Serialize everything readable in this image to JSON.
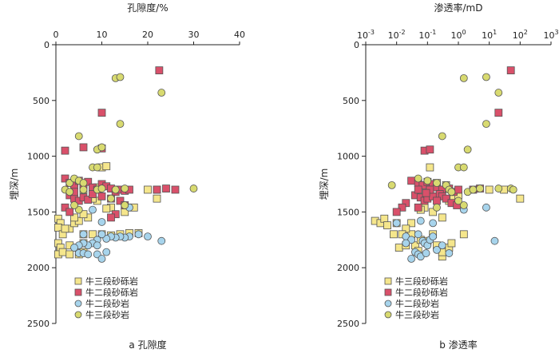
{
  "chart_data": [
    {
      "type": "scatter",
      "title": "孔隙度/%",
      "caption": "a 孔隙度",
      "xlabel": "孔隙度/%",
      "ylabel": "埋深/m",
      "xscale": "linear",
      "xlim": [
        0,
        40
      ],
      "ylim": [
        2500,
        0
      ],
      "xticks": [
        0,
        10,
        20,
        30,
        40
      ],
      "xtick_labels": [
        "0",
        "10",
        "20",
        "30",
        "40"
      ],
      "yticks": [
        0,
        500,
        1000,
        1500,
        2000,
        2500
      ],
      "ytick_labels": [
        "0",
        "500",
        "1000",
        "1500",
        "2000",
        "2500"
      ],
      "legend_position": "bottom-left",
      "series": [
        {
          "name": "牛三段砂砾岩",
          "marker": "square",
          "color": "#f5e68c",
          "points": [
            [
              0.5,
              1560
            ],
            [
              1,
              1600
            ],
            [
              0.5,
              1640
            ],
            [
              1.5,
              1700
            ],
            [
              0.5,
              1780
            ],
            [
              1,
              1820
            ],
            [
              0.5,
              1880
            ],
            [
              1.5,
              1860
            ],
            [
              3,
              1800
            ],
            [
              3,
              1650
            ],
            [
              4,
              1600
            ],
            [
              5,
              1580
            ],
            [
              6,
              1700
            ],
            [
              6,
              1780
            ],
            [
              6,
              1860
            ],
            [
              5,
              1880
            ],
            [
              8,
              1700
            ],
            [
              10,
              1700
            ],
            [
              12,
              1710
            ],
            [
              14,
              1700
            ],
            [
              16,
              1690
            ],
            [
              18,
              1690
            ],
            [
              17,
              1460
            ],
            [
              15,
              1500
            ],
            [
              12,
              1460
            ],
            [
              11,
              1470
            ],
            [
              9,
              1400
            ],
            [
              8,
              1380
            ],
            [
              7,
              1550
            ],
            [
              6,
              1520
            ],
            [
              4,
              1240
            ],
            [
              9,
              1280
            ],
            [
              10,
              1100
            ],
            [
              11,
              1090
            ],
            [
              22,
              1380
            ],
            [
              22,
              1300
            ],
            [
              20,
              1300
            ],
            [
              13,
              1300
            ],
            [
              6,
              1300
            ],
            [
              4,
              1550
            ],
            [
              2,
              1650
            ],
            [
              3,
              1880
            ]
          ]
        },
        {
          "name": "牛二段砂砾岩",
          "marker": "square",
          "color": "#d9506a",
          "points": [
            [
              22.5,
              230
            ],
            [
              10,
              610
            ],
            [
              2,
              950
            ],
            [
              6,
              920
            ],
            [
              10,
              930
            ],
            [
              2,
              1200
            ],
            [
              3,
              1240
            ],
            [
              4,
              1260
            ],
            [
              5,
              1220
            ],
            [
              6,
              1260
            ],
            [
              7,
              1230
            ],
            [
              8,
              1280
            ],
            [
              9,
              1300
            ],
            [
              10,
              1250
            ],
            [
              11,
              1270
            ],
            [
              12,
              1290
            ],
            [
              13,
              1320
            ],
            [
              14,
              1300
            ],
            [
              15,
              1310
            ],
            [
              16,
              1300
            ],
            [
              22,
              1300
            ],
            [
              24,
              1290
            ],
            [
              26,
              1300
            ],
            [
              3,
              1350
            ],
            [
              4,
              1380
            ],
            [
              5,
              1400
            ],
            [
              6,
              1370
            ],
            [
              7,
              1390
            ],
            [
              8,
              1340
            ],
            [
              10,
              1360
            ],
            [
              12,
              1380
            ],
            [
              14,
              1400
            ],
            [
              15,
              1440
            ],
            [
              2,
              1460
            ],
            [
              3,
              1500
            ],
            [
              13,
              1520
            ],
            [
              12,
              1550
            ],
            [
              4,
              1320
            ]
          ]
        },
        {
          "name": "牛二段砂岩",
          "marker": "circle",
          "color": "#a7d4ec",
          "points": [
            [
              23,
              1760
            ],
            [
              20,
              1720
            ],
            [
              18,
              1700
            ],
            [
              16,
              1720
            ],
            [
              15,
              1730
            ],
            [
              14,
              1720
            ],
            [
              13,
              1730
            ],
            [
              12,
              1720
            ],
            [
              11,
              1740
            ],
            [
              10,
              1700
            ],
            [
              9,
              1750
            ],
            [
              8,
              1780
            ],
            [
              7,
              1800
            ],
            [
              6,
              1780
            ],
            [
              5,
              1800
            ],
            [
              4,
              1820
            ],
            [
              5,
              1870
            ],
            [
              6,
              1870
            ],
            [
              7,
              1880
            ],
            [
              9,
              1880
            ],
            [
              10,
              1920
            ],
            [
              9,
              1800
            ],
            [
              11,
              1860
            ],
            [
              6,
              1700
            ],
            [
              10,
              1590
            ],
            [
              16,
              1460
            ],
            [
              8,
              1480
            ]
          ]
        },
        {
          "name": "牛三段砂岩",
          "marker": "circle",
          "color": "#d8da70",
          "points": [
            [
              13,
              300
            ],
            [
              14,
              290
            ],
            [
              23,
              430
            ],
            [
              14,
              710
            ],
            [
              5,
              820
            ],
            [
              9,
              940
            ],
            [
              10,
              920
            ],
            [
              8,
              1100
            ],
            [
              9,
              1100
            ],
            [
              3,
              1240
            ],
            [
              4,
              1200
            ],
            [
              5,
              1220
            ],
            [
              6,
              1240
            ],
            [
              2,
              1300
            ],
            [
              3,
              1320
            ],
            [
              9,
              1300
            ],
            [
              10,
              1290
            ],
            [
              13,
              1300
            ],
            [
              15,
              1290
            ],
            [
              30,
              1290
            ],
            [
              5,
              1480
            ],
            [
              4,
              1440
            ],
            [
              15,
              1440
            ],
            [
              6,
              1300
            ],
            [
              12,
              1380
            ]
          ]
        }
      ]
    },
    {
      "type": "scatter",
      "title": "渗透率/mD",
      "caption": "b 渗透率",
      "xlabel": "渗透率/mD",
      "ylabel": "埋深/m",
      "xscale": "log",
      "xlim": [
        0.001,
        1000
      ],
      "ylim": [
        2500,
        0
      ],
      "xticks": [
        0.001,
        0.01,
        0.1,
        1,
        10,
        100,
        1000
      ],
      "xtick_labels": [
        {
          "base": "10",
          "exp": "-3"
        },
        {
          "base": "10",
          "exp": "-2"
        },
        {
          "base": "10",
          "exp": "-1"
        },
        {
          "base": "10",
          "exp": "0"
        },
        {
          "base": "10",
          "exp": "1"
        },
        {
          "base": "10",
          "exp": "2"
        },
        {
          "base": "10",
          "exp": "3"
        }
      ],
      "yticks": [
        0,
        500,
        1000,
        1500,
        2000,
        2500
      ],
      "ytick_labels": [
        "0",
        "500",
        "1000",
        "1500",
        "2000",
        "2500"
      ],
      "legend_position": "bottom-left",
      "series": [
        {
          "name": "牛三段砂砾岩",
          "marker": "square",
          "color": "#f5e68c",
          "points": [
            [
              0.002,
              1580
            ],
            [
              0.003,
              1600
            ],
            [
              0.004,
              1560
            ],
            [
              0.005,
              1620
            ],
            [
              0.008,
              1700
            ],
            [
              0.01,
              1600
            ],
            [
              0.012,
              1820
            ],
            [
              0.02,
              1800
            ],
            [
              0.03,
              1700
            ],
            [
              0.04,
              1800
            ],
            [
              0.05,
              1850
            ],
            [
              0.06,
              1750
            ],
            [
              0.1,
              1760
            ],
            [
              0.15,
              1700
            ],
            [
              0.2,
              1800
            ],
            [
              0.3,
              1900
            ],
            [
              0.3,
              1860
            ],
            [
              0.5,
              1820
            ],
            [
              0.6,
              1780
            ],
            [
              1.5,
              1700
            ],
            [
              0.12,
              1100
            ],
            [
              0.15,
              1500
            ],
            [
              0.08,
              1460
            ],
            [
              0.06,
              1480
            ],
            [
              0.03,
              1600
            ],
            [
              0.5,
              1400
            ],
            [
              0.7,
              1380
            ],
            [
              1,
              1350
            ],
            [
              10,
              1300
            ],
            [
              30,
              1300
            ],
            [
              100,
              1380
            ],
            [
              0.2,
              1240
            ],
            [
              0.4,
              1260
            ],
            [
              0.3,
              1550
            ],
            [
              0.02,
              1650
            ],
            [
              0.015,
              1700
            ]
          ]
        },
        {
          "name": "牛二段砂砾岩",
          "marker": "square",
          "color": "#d9506a",
          "points": [
            [
              50,
              230
            ],
            [
              20,
              610
            ],
            [
              0.08,
              950
            ],
            [
              0.12,
              940
            ],
            [
              0.03,
              1220
            ],
            [
              0.05,
              1240
            ],
            [
              0.07,
              1260
            ],
            [
              0.1,
              1230
            ],
            [
              0.15,
              1250
            ],
            [
              0.2,
              1280
            ],
            [
              0.3,
              1300
            ],
            [
              0.5,
              1290
            ],
            [
              0.7,
              1320
            ],
            [
              1,
              1300
            ],
            [
              3,
              1300
            ],
            [
              5,
              1290
            ],
            [
              0.04,
              1350
            ],
            [
              0.06,
              1370
            ],
            [
              0.08,
              1400
            ],
            [
              0.1,
              1380
            ],
            [
              0.15,
              1360
            ],
            [
              0.25,
              1340
            ],
            [
              0.3,
              1360
            ],
            [
              0.4,
              1380
            ],
            [
              0.6,
              1420
            ],
            [
              0.9,
              1440
            ],
            [
              0.02,
              1420
            ],
            [
              0.015,
              1460
            ],
            [
              0.01,
              1500
            ],
            [
              0.05,
              1460
            ],
            [
              0.2,
              1400
            ],
            [
              0.12,
              1300
            ],
            [
              0.09,
              1330
            ],
            [
              0.05,
              1300
            ]
          ]
        },
        {
          "name": "牛二段砂岩",
          "marker": "circle",
          "color": "#a7d4ec",
          "points": [
            [
              15,
              1760
            ],
            [
              8,
              1460
            ],
            [
              1.5,
              1480
            ],
            [
              0.01,
              1600
            ],
            [
              0.02,
              1720
            ],
            [
              0.03,
              1750
            ],
            [
              0.05,
              1700
            ],
            [
              0.07,
              1760
            ],
            [
              0.08,
              1780
            ],
            [
              0.1,
              1800
            ],
            [
              0.12,
              1750
            ],
            [
              0.15,
              1720
            ],
            [
              0.2,
              1840
            ],
            [
              0.3,
              1800
            ],
            [
              0.04,
              1860
            ],
            [
              0.05,
              1880
            ],
            [
              0.06,
              1900
            ],
            [
              0.03,
              1920
            ],
            [
              0.09,
              1870
            ],
            [
              0.5,
              1870
            ],
            [
              0.06,
              1580
            ],
            [
              0.15,
              1600
            ],
            [
              0.02,
              1780
            ]
          ]
        },
        {
          "name": "牛三段砂岩",
          "marker": "circle",
          "color": "#d8da70",
          "points": [
            [
              1.5,
              300
            ],
            [
              8,
              290
            ],
            [
              20,
              430
            ],
            [
              8,
              710
            ],
            [
              0.3,
              820
            ],
            [
              2,
              940
            ],
            [
              1,
              1100
            ],
            [
              1.5,
              1100
            ],
            [
              0.007,
              1260
            ],
            [
              0.05,
              1200
            ],
            [
              0.1,
              1220
            ],
            [
              0.2,
              1240
            ],
            [
              0.4,
              1260
            ],
            [
              0.5,
              1300
            ],
            [
              2,
              1320
            ],
            [
              3,
              1300
            ],
            [
              5,
              1290
            ],
            [
              20,
              1290
            ],
            [
              50,
              1290
            ],
            [
              60,
              1300
            ],
            [
              1.5,
              1440
            ],
            [
              1,
              1400
            ],
            [
              0.6,
              1320
            ],
            [
              0.2,
              1460
            ]
          ]
        }
      ]
    }
  ]
}
